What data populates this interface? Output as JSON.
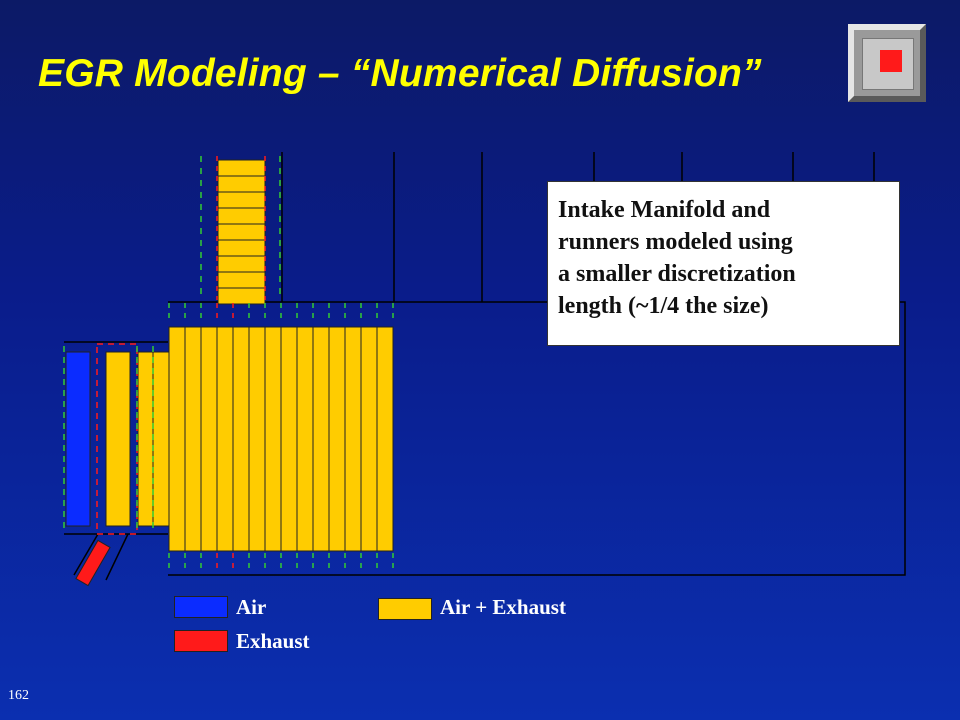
{
  "slide": {
    "title": "EGR Modeling – “Numerical Diffusion”",
    "page_number": "162"
  },
  "callout": {
    "lines": [
      "Intake Manifold and",
      "runners modeled using",
      "a smaller discretization",
      "length (~1/4 the size)"
    ]
  },
  "legend": {
    "items": [
      {
        "label": "Air",
        "color": "#0b2cff"
      },
      {
        "label": "Exhaust",
        "color": "#ff1a1a"
      },
      {
        "label": "Air + Exhaust",
        "color": "#ffcc00"
      }
    ]
  },
  "nav": {
    "icon": "stop-square-icon"
  },
  "colors": {
    "title": "#ffff00",
    "background": "#0a1c8a",
    "air": "#0b2cff",
    "exhaust": "#ff1a1a",
    "mix": "#ffcc00"
  }
}
